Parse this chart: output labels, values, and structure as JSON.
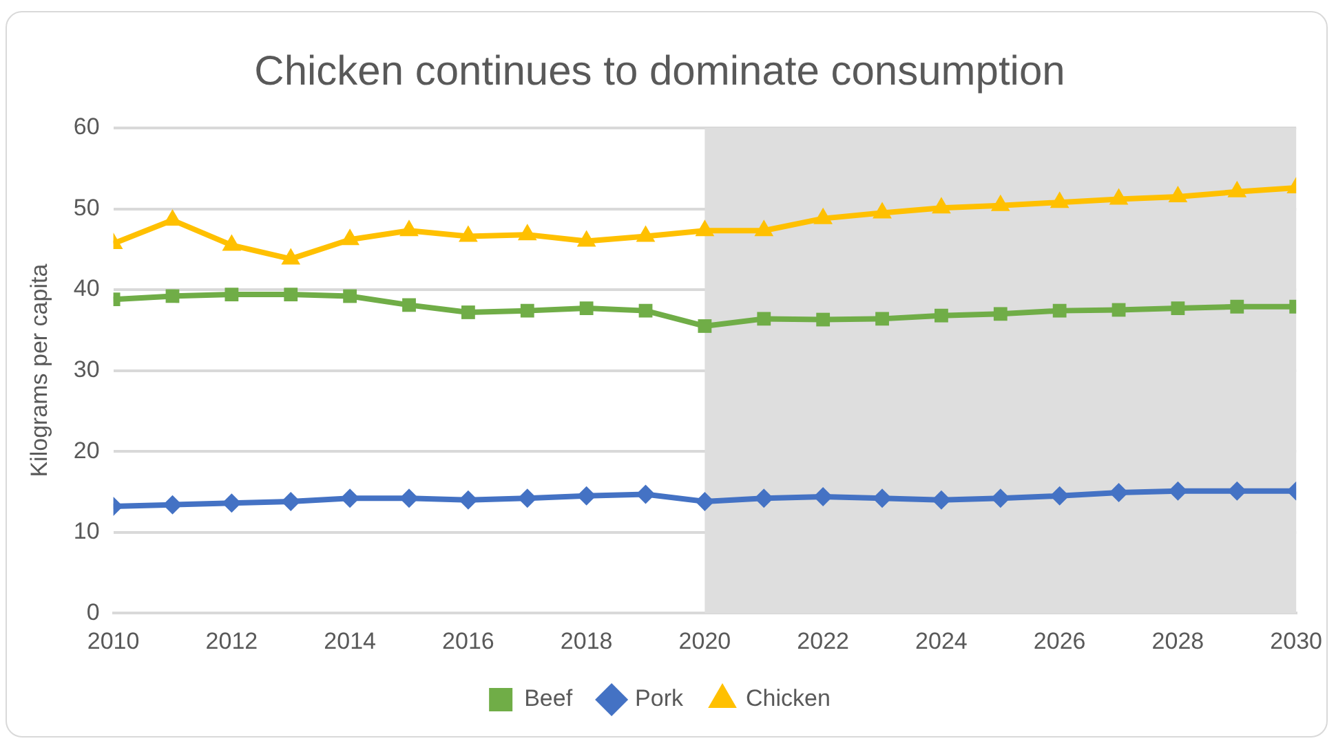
{
  "chart_data": {
    "type": "line",
    "title": "Chicken continues to dominate consumption",
    "ylabel": "Kilograms per capita",
    "x": [
      2010,
      2011,
      2012,
      2013,
      2014,
      2015,
      2016,
      2017,
      2018,
      2019,
      2020,
      2021,
      2022,
      2023,
      2024,
      2025,
      2026,
      2027,
      2028,
      2029,
      2030
    ],
    "series": [
      {
        "name": "Beef",
        "color": "#70ad47",
        "marker": "square",
        "values": [
          38.8,
          39.2,
          39.4,
          39.4,
          39.2,
          38.1,
          37.2,
          37.4,
          37.7,
          37.4,
          35.5,
          36.4,
          36.3,
          36.4,
          36.8,
          37.0,
          37.4,
          37.5,
          37.7,
          37.9,
          37.9
        ]
      },
      {
        "name": "Pork",
        "color": "#4472c4",
        "marker": "diamond",
        "values": [
          13.2,
          13.4,
          13.6,
          13.8,
          14.2,
          14.2,
          14.0,
          14.2,
          14.5,
          14.7,
          13.8,
          14.2,
          14.4,
          14.2,
          14.0,
          14.2,
          14.5,
          14.9,
          15.1,
          15.1,
          15.1
        ]
      },
      {
        "name": "Chicken",
        "color": "#ffc000",
        "marker": "triangle",
        "values": [
          45.7,
          48.6,
          45.5,
          43.8,
          46.2,
          47.3,
          46.6,
          46.8,
          46.0,
          46.6,
          47.3,
          47.3,
          48.8,
          49.5,
          50.1,
          50.4,
          50.8,
          51.2,
          51.5,
          52.1,
          52.6
        ]
      }
    ],
    "xlim": [
      2010,
      2030
    ],
    "xticks": [
      2010,
      2012,
      2014,
      2016,
      2018,
      2020,
      2022,
      2024,
      2026,
      2028,
      2030
    ],
    "ylim": [
      0,
      60
    ],
    "yticks": [
      0,
      10,
      20,
      30,
      40,
      50,
      60
    ],
    "bands": [
      {
        "axis": "x",
        "from": 2020,
        "to": 2030,
        "color": "#dedede"
      }
    ],
    "grid": "y",
    "legend": "bottom",
    "line_style": "solid"
  }
}
